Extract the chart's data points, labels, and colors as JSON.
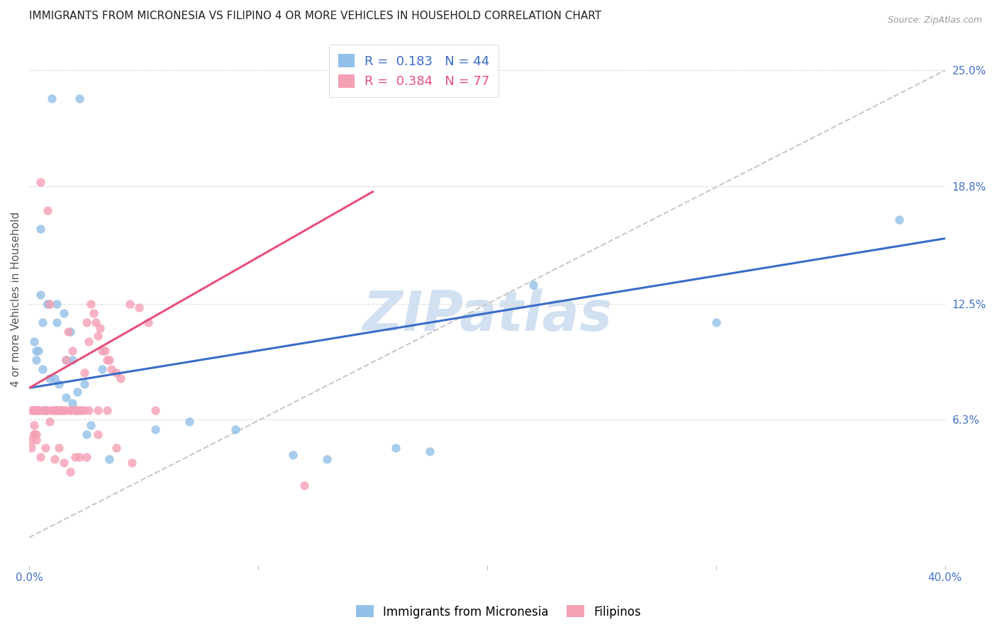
{
  "title": "IMMIGRANTS FROM MICRONESIA VS FILIPINO 4 OR MORE VEHICLES IN HOUSEHOLD CORRELATION CHART",
  "source": "Source: ZipAtlas.com",
  "ylabel": "4 or more Vehicles in Household",
  "xlim": [
    0.0,
    40.0
  ],
  "ylim": [
    -1.5,
    27.0
  ],
  "xtick_positions": [
    0.0,
    10.0,
    20.0,
    30.0,
    40.0
  ],
  "xticklabels": [
    "0.0%",
    "",
    "",
    "",
    "40.0%"
  ],
  "yticks_right": [
    6.3,
    12.5,
    18.8,
    25.0
  ],
  "yticklabels_right": [
    "6.3%",
    "12.5%",
    "18.8%",
    "25.0%"
  ],
  "blue_R": 0.183,
  "blue_N": 44,
  "pink_R": 0.384,
  "pink_N": 77,
  "blue_color": "#92C0E8",
  "pink_color": "#F5A0B5",
  "blue_line_color": "#3A6CC8",
  "pink_line_color": "#E8507A",
  "diag_color": "#C8C8C8",
  "watermark": "ZIPatlas",
  "watermark_color": "#B5CDE8",
  "legend_label_blue": "Immigrants from Micronesia",
  "legend_label_pink": "Filipinos",
  "grid_color": "#DDDDDD",
  "title_fontsize": 11,
  "axis_tick_color": "#4472C4",
  "blue_scatter_x": [
    1.0,
    2.2,
    0.5,
    0.5,
    0.8,
    1.2,
    1.5,
    1.8,
    0.3,
    0.4,
    0.6,
    0.9,
    1.1,
    1.3,
    1.6,
    1.9,
    2.1,
    2.4,
    2.7,
    3.2,
    5.5,
    7.0,
    9.0,
    11.5,
    13.0,
    16.0,
    17.5,
    22.0,
    30.0,
    0.2,
    0.3,
    0.4,
    0.7,
    2.0,
    3.5,
    38.0,
    0.2,
    0.3,
    0.6,
    0.8,
    1.2,
    1.6,
    1.9,
    2.5
  ],
  "blue_scatter_y": [
    23.5,
    23.5,
    16.5,
    13.0,
    12.5,
    12.5,
    12.0,
    11.0,
    9.5,
    10.0,
    9.0,
    8.5,
    8.5,
    8.2,
    7.5,
    7.2,
    7.8,
    8.2,
    6.0,
    9.0,
    5.8,
    6.2,
    5.8,
    4.4,
    4.2,
    4.8,
    4.6,
    13.5,
    11.5,
    6.8,
    6.8,
    6.8,
    6.8,
    6.8,
    4.2,
    17.0,
    10.5,
    10.0,
    11.5,
    12.5,
    11.5,
    9.5,
    9.5,
    5.5
  ],
  "pink_scatter_x": [
    0.2,
    0.3,
    0.4,
    0.5,
    0.6,
    0.7,
    0.8,
    0.9,
    1.0,
    1.1,
    1.2,
    1.3,
    1.4,
    1.5,
    1.6,
    1.7,
    1.8,
    1.9,
    2.0,
    2.1,
    2.2,
    2.3,
    2.4,
    2.5,
    2.6,
    2.7,
    2.8,
    2.9,
    3.0,
    3.1,
    3.2,
    3.3,
    3.4,
    3.5,
    3.6,
    3.8,
    4.0,
    4.4,
    4.8,
    5.2,
    5.5,
    0.2,
    0.3,
    0.5,
    0.7,
    0.9,
    1.1,
    1.3,
    1.5,
    1.8,
    2.0,
    2.2,
    2.5,
    3.0,
    3.8,
    4.5,
    0.2,
    0.4,
    0.6,
    0.8,
    1.0,
    1.2,
    1.4,
    1.6,
    1.8,
    2.0,
    2.4,
    2.6,
    3.0,
    3.4,
    0.1,
    0.1,
    0.1,
    0.2,
    0.2,
    0.3,
    12.0
  ],
  "pink_scatter_y": [
    6.8,
    6.8,
    6.8,
    19.0,
    6.8,
    6.8,
    17.5,
    12.5,
    6.8,
    6.8,
    6.8,
    6.8,
    6.8,
    6.8,
    9.5,
    11.0,
    6.8,
    10.0,
    6.8,
    6.8,
    6.8,
    6.8,
    8.8,
    11.5,
    10.5,
    12.5,
    12.0,
    11.5,
    10.8,
    11.2,
    10.0,
    10.0,
    9.5,
    9.5,
    9.0,
    8.8,
    8.5,
    12.5,
    12.3,
    11.5,
    6.8,
    6.0,
    5.5,
    4.3,
    4.8,
    6.2,
    4.2,
    4.8,
    4.0,
    3.5,
    4.3,
    4.3,
    4.3,
    5.5,
    4.8,
    4.0,
    6.8,
    6.8,
    6.8,
    6.8,
    6.8,
    6.8,
    6.8,
    6.8,
    6.8,
    6.8,
    6.8,
    6.8,
    6.8,
    6.8,
    6.8,
    5.2,
    4.8,
    5.5,
    5.5,
    5.2,
    2.8
  ],
  "blue_line_x": [
    0.0,
    40.0
  ],
  "blue_line_y_start": 8.0,
  "blue_line_y_end": 16.0,
  "pink_line_x": [
    0.0,
    15.0
  ],
  "pink_line_y_start": 8.0,
  "pink_line_y_end": 18.5
}
